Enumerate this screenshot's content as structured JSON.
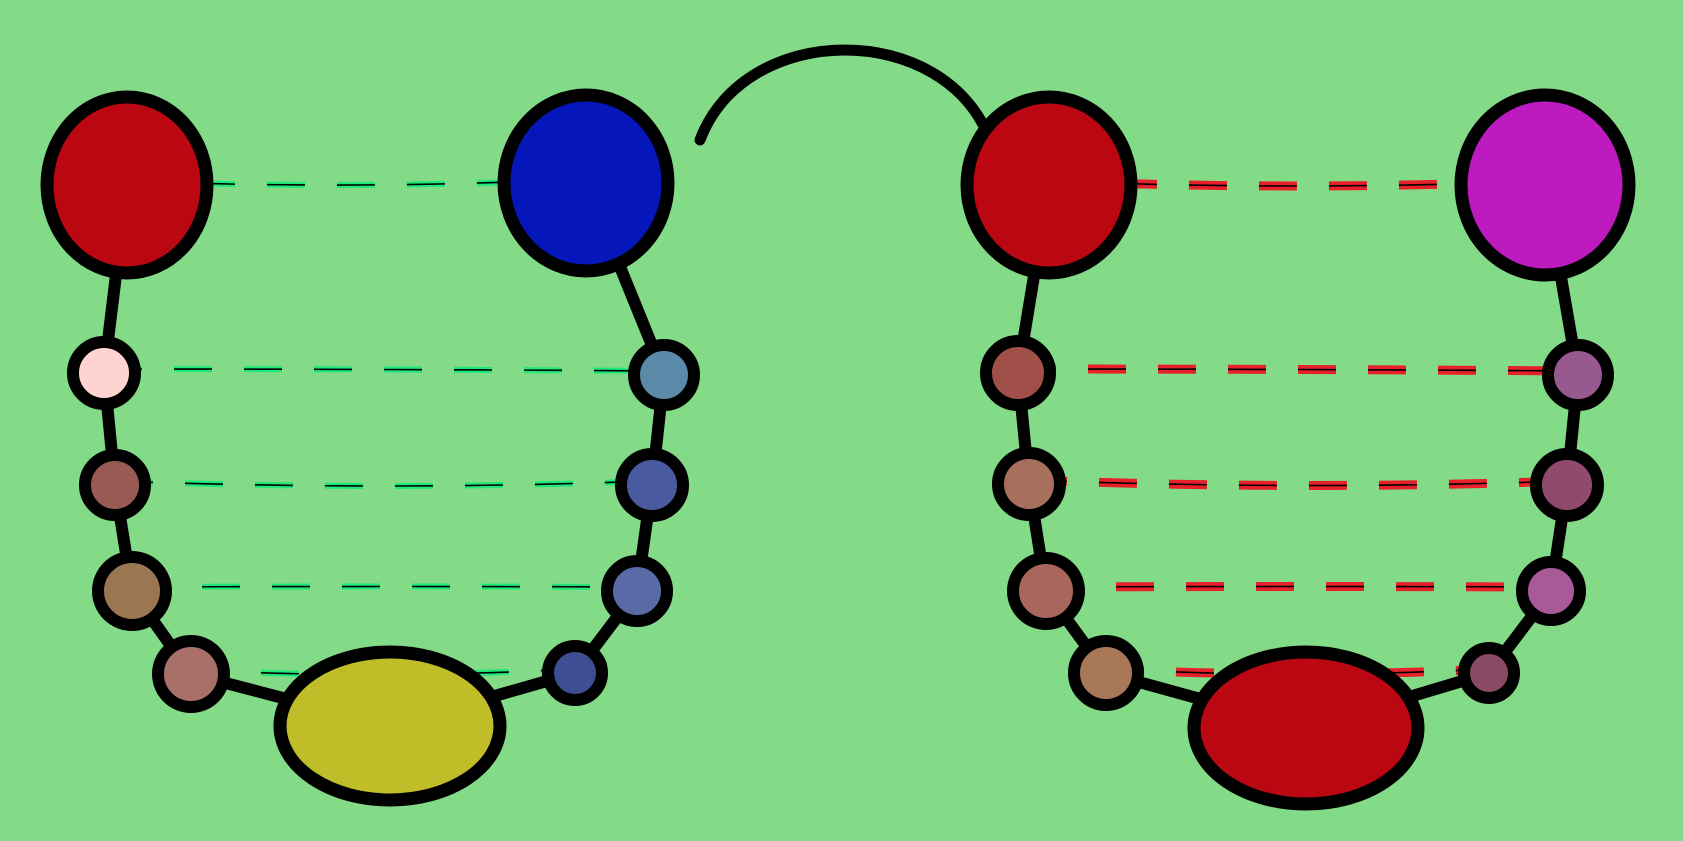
{
  "background": "#83db87",
  "outline_color": "#000000",
  "link_colors": {
    "left": "#1ee87a",
    "right": "#e8202a"
  },
  "hairpins": [
    {
      "name": "left",
      "link_color_key": "left",
      "nodes": [
        {
          "id": "L-top-left",
          "color": "#bb0712"
        },
        {
          "id": "L-top-right",
          "color": "#0517bb"
        },
        {
          "id": "L-bottom",
          "color": "#c0be28"
        },
        {
          "id": "L-a1",
          "color": "#ffd4d0"
        },
        {
          "id": "L-a2",
          "color": "#985a52"
        },
        {
          "id": "L-a3",
          "color": "#9a7652"
        },
        {
          "id": "L-a4",
          "color": "#a87068"
        },
        {
          "id": "L-b1",
          "color": "#5a8aa8"
        },
        {
          "id": "L-b2",
          "color": "#4a5aa0"
        },
        {
          "id": "L-b3",
          "color": "#5a6aa6"
        },
        {
          "id": "L-b4",
          "color": "#3e4e92"
        }
      ]
    },
    {
      "name": "right",
      "link_color_key": "right",
      "nodes": [
        {
          "id": "R-top-left",
          "color": "#bb0712"
        },
        {
          "id": "R-top-right",
          "color": "#bd1abf"
        },
        {
          "id": "R-bottom",
          "color": "#bb0712"
        },
        {
          "id": "R-a1",
          "color": "#a05048"
        },
        {
          "id": "R-a2",
          "color": "#a8705c"
        },
        {
          "id": "R-a3",
          "color": "#a8665c"
        },
        {
          "id": "R-a4",
          "color": "#a87858"
        },
        {
          "id": "R-b1",
          "color": "#985890"
        },
        {
          "id": "R-b2",
          "color": "#904a6e"
        },
        {
          "id": "R-b3",
          "color": "#a85a98"
        },
        {
          "id": "R-b4",
          "color": "#8a4a66"
        }
      ]
    }
  ]
}
